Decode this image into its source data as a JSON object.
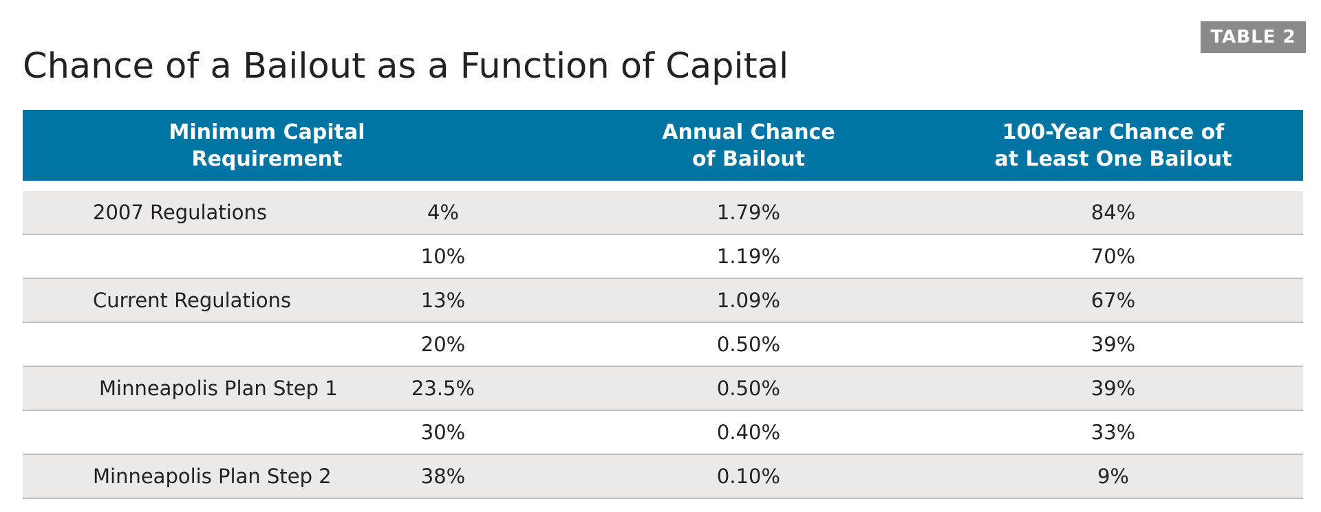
{
  "badge": "TABLE 2",
  "title": "Chance of a Bailout as a Function of Capital",
  "table": {
    "headers": {
      "min_capital": "Minimum Capital\nRequirement",
      "annual": "Annual Chance\nof Bailout",
      "hundred_year": "100-Year Chance of\nat Least One Bailout"
    },
    "rows": [
      {
        "label": "2007 Regulations",
        "requirement": "4%",
        "annual": "1.79%",
        "hundred_year": "84%"
      },
      {
        "label": "",
        "requirement": "10%",
        "annual": "1.19%",
        "hundred_year": "70%"
      },
      {
        "label": "Current Regulations",
        "requirement": "13%",
        "annual": "1.09%",
        "hundred_year": "67%"
      },
      {
        "label": "",
        "requirement": "20%",
        "annual": "0.50%",
        "hundred_year": "39%"
      },
      {
        "label": "Minneapolis Plan Step 1",
        "requirement": "23.5%",
        "annual": "0.50%",
        "hundred_year": "39%"
      },
      {
        "label": "",
        "requirement": "30%",
        "annual": "0.40%",
        "hundred_year": "33%"
      },
      {
        "label": "Minneapolis Plan Step 2",
        "requirement": "38%",
        "annual": "0.10%",
        "hundred_year": "9%"
      }
    ]
  },
  "colors": {
    "header_background": "#0075a3",
    "badge_background": "#8a8a8a",
    "shaded_row": "#ebeae8",
    "row_divider": "#bdbdbd"
  }
}
